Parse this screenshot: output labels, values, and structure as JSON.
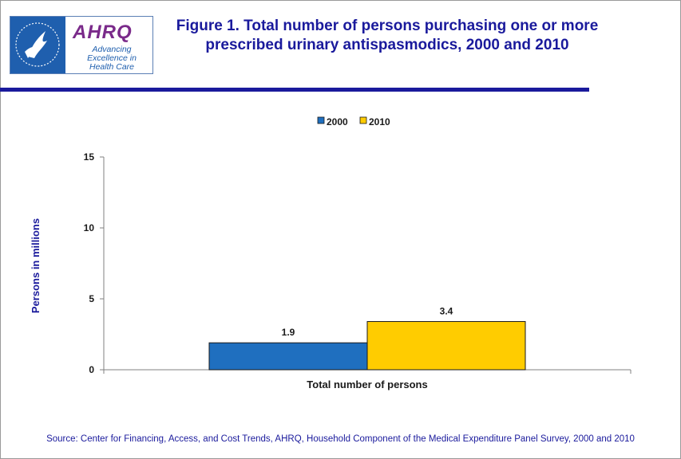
{
  "header": {
    "title_line1": "Figure 1. Total number of persons purchasing one or more",
    "title_line2": "prescribed urinary antispasmodics, 2000 and 2010"
  },
  "logo": {
    "name": "AHRQ",
    "tagline_line1": "Advancing",
    "tagline_line2": "Excellence in",
    "tagline_line3": "Health Care"
  },
  "chart_data": {
    "type": "bar",
    "categories": [
      "Total number of persons"
    ],
    "series": [
      {
        "name": "2000",
        "values": [
          1.9
        ],
        "color": "#1f6fbf"
      },
      {
        "name": "2010",
        "values": [
          3.4
        ],
        "color": "#ffcc00"
      }
    ],
    "ylabel": "Persons in millions",
    "xlabel": "Total number of persons",
    "ylim": [
      0,
      15
    ],
    "yticks": [
      0,
      5,
      10,
      15
    ],
    "legend_position": "top-center",
    "grid": false
  },
  "footer": {
    "source": "Source: Center for Financing, Access, and Cost Trends, AHRQ, Household Component of the Medical Expenditure Panel Survey,  2000 and 2010"
  }
}
